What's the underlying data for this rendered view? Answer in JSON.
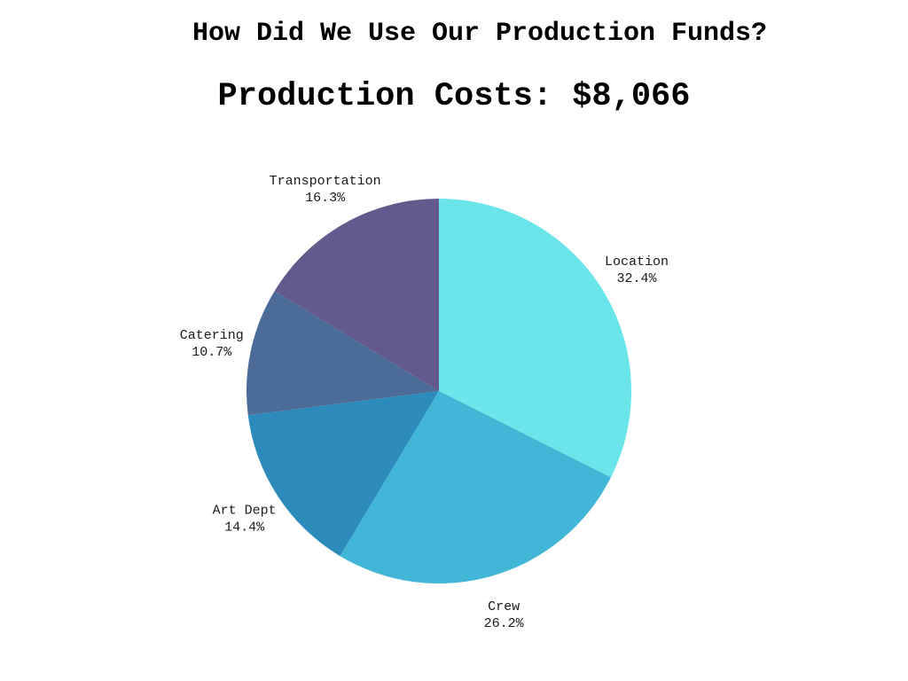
{
  "header": {
    "title": "How Did We Use Our Production Funds?"
  },
  "chart_data": {
    "type": "pie",
    "title": "How Did We Use Our Production Funds?",
    "subtitle": "Production Costs: $8,066",
    "start_angle_deg": 0,
    "direction": "clockwise",
    "slices": [
      {
        "label": "Location",
        "percent_text": "32.4%",
        "value": 32.4,
        "color": "#6ae5ea"
      },
      {
        "label": "Crew",
        "percent_text": "26.2%",
        "value": 26.2,
        "color": "#41b6d7"
      },
      {
        "label": "Art Dept",
        "percent_text": "14.4%",
        "value": 14.4,
        "color": "#2d8bbb"
      },
      {
        "label": "Catering",
        "percent_text": "10.7%",
        "value": 10.7,
        "color": "#4b6c98"
      },
      {
        "label": "Transportation",
        "percent_text": "16.3%",
        "value": 16.3,
        "color": "#62598d"
      }
    ]
  }
}
